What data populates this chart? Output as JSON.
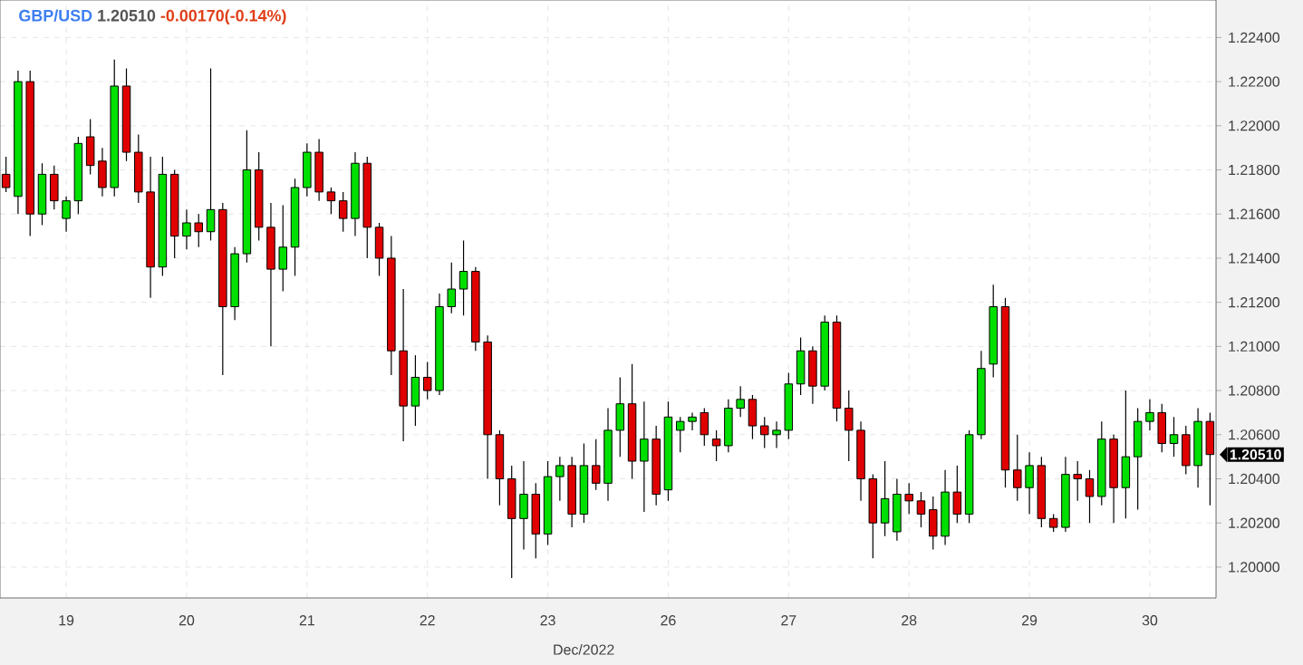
{
  "chart_data": {
    "type": "candlestick",
    "title": "GBP/USD",
    "annotations": [
      "1.20510",
      "-0.00170(-0.14%)",
      "1.20510"
    ],
    "xlabel": "Dec/2022",
    "categories": [
      null,
      null,
      null,
      null,
      null,
      "19",
      null,
      null,
      null,
      null,
      null,
      null,
      null,
      null,
      null,
      "20",
      null,
      null,
      null,
      null,
      null,
      null,
      null,
      null,
      null,
      "21",
      null,
      null,
      null,
      null,
      null,
      null,
      null,
      null,
      null,
      "22",
      null,
      null,
      null,
      null,
      null,
      null,
      null,
      null,
      null,
      "23",
      null,
      null,
      null,
      null,
      null,
      null,
      null,
      null,
      null,
      "26",
      null,
      null,
      null,
      null,
      null,
      null,
      null,
      null,
      null,
      "27",
      null,
      null,
      null,
      null,
      null,
      null,
      null,
      null,
      null,
      "28",
      null,
      null,
      null,
      null,
      null,
      null,
      null,
      null,
      null,
      "29",
      null,
      null,
      null,
      null,
      null,
      null,
      null,
      null,
      null,
      "30",
      null,
      null,
      null,
      null,
      null
    ],
    "ohlc": [
      [
        1.2178,
        1.2186,
        1.217,
        1.2172
      ],
      [
        1.2168,
        1.2225,
        1.216,
        1.222
      ],
      [
        1.222,
        1.2225,
        1.215,
        1.216
      ],
      [
        1.216,
        1.2183,
        1.2155,
        1.2178
      ],
      [
        1.2178,
        1.2182,
        1.2162,
        1.2166
      ],
      [
        1.2158,
        1.2168,
        1.2152,
        1.2166
      ],
      [
        1.2166,
        1.2195,
        1.216,
        1.2192
      ],
      [
        1.2195,
        1.2203,
        1.2178,
        1.2182
      ],
      [
        1.2184,
        1.219,
        1.2168,
        1.2172
      ],
      [
        1.2172,
        1.223,
        1.2168,
        1.2218
      ],
      [
        1.2218,
        1.2226,
        1.2184,
        1.2188
      ],
      [
        1.2188,
        1.2196,
        1.2165,
        1.217
      ],
      [
        1.217,
        1.2186,
        1.2122,
        1.2136
      ],
      [
        1.2136,
        1.2186,
        1.2132,
        1.2178
      ],
      [
        1.2178,
        1.218,
        1.214,
        1.215
      ],
      [
        1.215,
        1.2162,
        1.2144,
        1.2156
      ],
      [
        1.2156,
        1.216,
        1.2145,
        1.2152
      ],
      [
        1.2152,
        1.2226,
        1.2148,
        1.2162
      ],
      [
        1.2162,
        1.2165,
        1.2087,
        1.2118
      ],
      [
        1.2118,
        1.2145,
        1.2112,
        1.2142
      ],
      [
        1.2142,
        1.2198,
        1.2138,
        1.218
      ],
      [
        1.218,
        1.2188,
        1.2148,
        1.2154
      ],
      [
        1.2154,
        1.2165,
        1.21,
        1.2135
      ],
      [
        1.2135,
        1.2164,
        1.2125,
        1.2145
      ],
      [
        1.2145,
        1.2176,
        1.2132,
        1.2172
      ],
      [
        1.2172,
        1.2192,
        1.2168,
        1.2188
      ],
      [
        1.2188,
        1.2194,
        1.2166,
        1.217
      ],
      [
        1.217,
        1.2172,
        1.216,
        1.2166
      ],
      [
        1.2166,
        1.217,
        1.2152,
        1.2158
      ],
      [
        1.2158,
        1.2188,
        1.215,
        1.2183
      ],
      [
        1.2183,
        1.2186,
        1.214,
        1.2154
      ],
      [
        1.2154,
        1.2156,
        1.2132,
        1.214
      ],
      [
        1.214,
        1.215,
        1.2087,
        1.2098
      ],
      [
        1.2098,
        1.2126,
        1.2057,
        1.2073
      ],
      [
        1.2073,
        1.2096,
        1.2064,
        1.2086
      ],
      [
        1.2086,
        1.2093,
        1.2076,
        1.208
      ],
      [
        1.208,
        1.2124,
        1.2078,
        1.2118
      ],
      [
        1.2118,
        1.2138,
        1.2115,
        1.2126
      ],
      [
        1.2126,
        1.2148,
        1.2114,
        1.2134
      ],
      [
        1.2134,
        1.2136,
        1.2098,
        1.2102
      ],
      [
        1.2102,
        1.2105,
        1.204,
        1.206
      ],
      [
        1.206,
        1.2062,
        1.2028,
        1.204
      ],
      [
        1.204,
        1.2046,
        1.1995,
        1.2022
      ],
      [
        1.2022,
        1.2048,
        1.2008,
        1.2033
      ],
      [
        1.2033,
        1.2038,
        1.2004,
        1.2015
      ],
      [
        1.2015,
        1.2048,
        1.201,
        1.2041
      ],
      [
        1.2041,
        1.205,
        1.203,
        1.2046
      ],
      [
        1.2046,
        1.205,
        1.2018,
        1.2024
      ],
      [
        1.2024,
        1.2056,
        1.202,
        1.2046
      ],
      [
        1.2046,
        1.2058,
        1.2035,
        1.2038
      ],
      [
        1.2038,
        1.2072,
        1.203,
        1.2062
      ],
      [
        1.2062,
        1.2086,
        1.205,
        1.2074
      ],
      [
        1.2074,
        1.2092,
        1.204,
        1.2048
      ],
      [
        1.2048,
        1.2075,
        1.2025,
        1.2058
      ],
      [
        1.2058,
        1.2064,
        1.2028,
        1.2033
      ],
      [
        1.2035,
        1.2075,
        1.203,
        1.2068
      ],
      [
        1.2062,
        1.2068,
        1.2052,
        1.2066
      ],
      [
        1.2066,
        1.207,
        1.2062,
        1.2068
      ],
      [
        1.207,
        1.2072,
        1.2055,
        1.206
      ],
      [
        1.2058,
        1.2062,
        1.2048,
        1.2055
      ],
      [
        1.2055,
        1.2076,
        1.2052,
        1.2072
      ],
      [
        1.2072,
        1.2082,
        1.2068,
        1.2076
      ],
      [
        1.2076,
        1.2078,
        1.2058,
        1.2064
      ],
      [
        1.2064,
        1.2068,
        1.2054,
        1.206
      ],
      [
        1.206,
        1.2066,
        1.2054,
        1.2062
      ],
      [
        1.2062,
        1.2088,
        1.2058,
        1.2083
      ],
      [
        1.2083,
        1.2104,
        1.2078,
        1.2098
      ],
      [
        1.2098,
        1.21,
        1.2074,
        1.2082
      ],
      [
        1.2082,
        1.2114,
        1.208,
        1.2111
      ],
      [
        1.2111,
        1.2114,
        1.2066,
        1.2072
      ],
      [
        1.2072,
        1.208,
        1.2048,
        1.2062
      ],
      [
        1.2062,
        1.2066,
        1.203,
        1.204
      ],
      [
        1.204,
        1.2042,
        1.2004,
        1.202
      ],
      [
        1.202,
        1.2048,
        1.2014,
        1.2031
      ],
      [
        1.2016,
        1.204,
        1.2012,
        1.2033
      ],
      [
        1.2033,
        1.2038,
        1.2024,
        1.203
      ],
      [
        1.203,
        1.2034,
        1.2018,
        1.2024
      ],
      [
        1.2026,
        1.2032,
        1.2008,
        1.2014
      ],
      [
        1.2014,
        1.2044,
        1.201,
        1.2034
      ],
      [
        1.2034,
        1.2046,
        1.202,
        1.2024
      ],
      [
        1.2024,
        1.2062,
        1.202,
        1.206
      ],
      [
        1.206,
        1.2098,
        1.2058,
        1.209
      ],
      [
        1.2092,
        1.2128,
        1.2086,
        1.2118
      ],
      [
        1.2118,
        1.2122,
        1.2036,
        1.2044
      ],
      [
        1.2044,
        1.206,
        1.203,
        1.2036
      ],
      [
        1.2036,
        1.2052,
        1.2024,
        1.2046
      ],
      [
        1.2046,
        1.205,
        1.2018,
        1.2022
      ],
      [
        1.2022,
        1.2024,
        1.2016,
        1.2018
      ],
      [
        1.2018,
        1.205,
        1.2016,
        1.2042
      ],
      [
        1.2042,
        1.2048,
        1.203,
        1.204
      ],
      [
        1.204,
        1.2044,
        1.202,
        1.2032
      ],
      [
        1.2032,
        1.2066,
        1.2028,
        1.2058
      ],
      [
        1.2058,
        1.206,
        1.202,
        1.2036
      ],
      [
        1.2036,
        1.208,
        1.2022,
        1.205
      ],
      [
        1.205,
        1.2072,
        1.2026,
        1.2066
      ],
      [
        1.2066,
        1.2076,
        1.2062,
        1.207
      ],
      [
        1.207,
        1.2074,
        1.2052,
        1.2056
      ],
      [
        1.2056,
        1.2068,
        1.205,
        1.206
      ],
      [
        1.206,
        1.2064,
        1.2042,
        1.2046
      ],
      [
        1.2046,
        1.2072,
        1.2036,
        1.2066
      ],
      [
        1.2066,
        1.207,
        1.2028,
        1.2051
      ]
    ],
    "ylim": [
      1.1986,
      1.2257
    ],
    "yticks": [
      {
        "value": 1.2,
        "label": "1.20000"
      },
      {
        "value": 1.202,
        "label": "1.20200"
      },
      {
        "value": 1.204,
        "label": "1.20400"
      },
      {
        "value": 1.206,
        "label": "1.20600"
      },
      {
        "value": 1.208,
        "label": "1.20800"
      },
      {
        "value": 1.21,
        "label": "1.21000"
      },
      {
        "value": 1.212,
        "label": "1.21200"
      },
      {
        "value": 1.214,
        "label": "1.21400"
      },
      {
        "value": 1.216,
        "label": "1.21600"
      },
      {
        "value": 1.218,
        "label": "1.21800"
      },
      {
        "value": 1.22,
        "label": "1.22000"
      },
      {
        "value": 1.222,
        "label": "1.22200"
      },
      {
        "value": 1.224,
        "label": "1.22400"
      }
    ],
    "grid": true
  }
}
